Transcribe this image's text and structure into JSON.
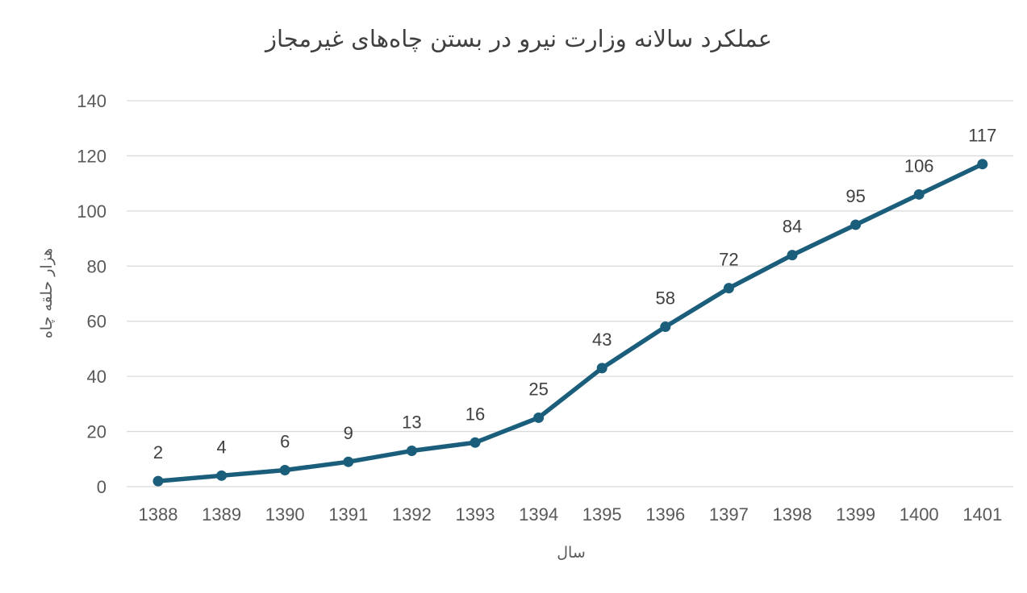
{
  "chart_data": {
    "type": "line",
    "title": "عملکرد سالانه وزارت نیرو در بستن چاه‌های غیرمجاز",
    "xlabel": "سال",
    "ylabel": "هزار حلقه چاه",
    "ylim": [
      0,
      140
    ],
    "ytick_step": 20,
    "grid": true,
    "legend": "none",
    "categories": [
      "1388",
      "1389",
      "1390",
      "1391",
      "1392",
      "1393",
      "1394",
      "1395",
      "1396",
      "1397",
      "1398",
      "1399",
      "1400",
      "1401"
    ],
    "series": [
      {
        "name": "هزار حلقه چاه",
        "color": "#1b5e7b",
        "values": [
          2,
          4,
          6,
          9,
          13,
          16,
          25,
          43,
          58,
          72,
          84,
          95,
          106,
          117
        ],
        "labels": [
          "2",
          "4",
          "6",
          "9",
          "13",
          "16",
          "25",
          "43",
          "58",
          "72",
          "84",
          "95",
          "106",
          "117"
        ]
      }
    ]
  }
}
